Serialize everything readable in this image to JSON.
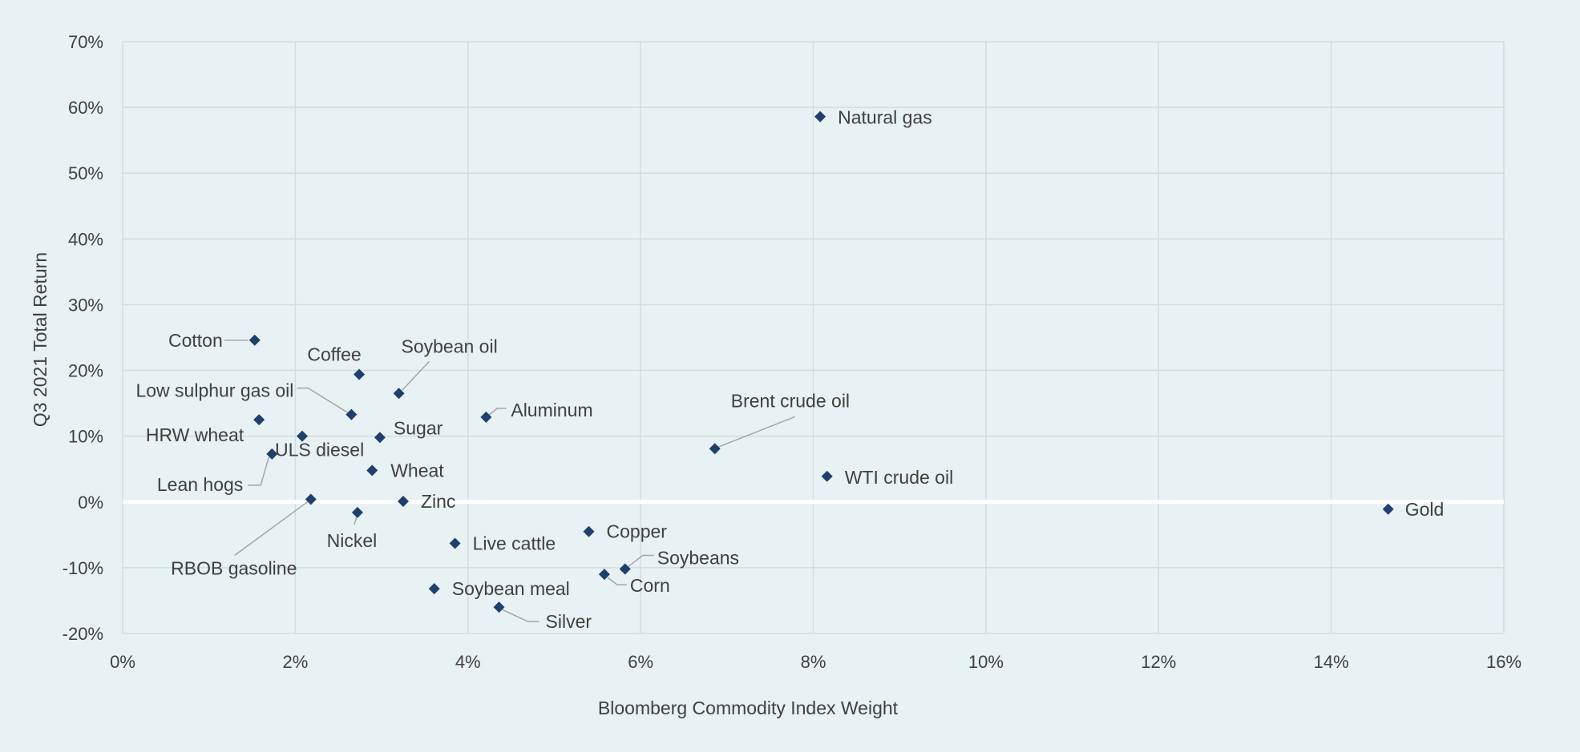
{
  "chart_data": {
    "type": "scatter",
    "xlabel": "Bloomberg Commodity Index Weight",
    "ylabel": "Q3 2021 Total Return",
    "xlim": [
      0,
      16
    ],
    "ylim": [
      -20,
      70
    ],
    "x_ticks": [
      {
        "value": 0,
        "label": "0%"
      },
      {
        "value": 2,
        "label": "2%"
      },
      {
        "value": 4,
        "label": "4%"
      },
      {
        "value": 6,
        "label": "6%"
      },
      {
        "value": 8,
        "label": "8%"
      },
      {
        "value": 10,
        "label": "10%"
      },
      {
        "value": 12,
        "label": "12%"
      },
      {
        "value": 14,
        "label": "14%"
      },
      {
        "value": 16,
        "label": "16%"
      }
    ],
    "y_ticks": [
      {
        "value": -20,
        "label": "-20%"
      },
      {
        "value": -10,
        "label": "-10%"
      },
      {
        "value": 0,
        "label": "0%"
      },
      {
        "value": 10,
        "label": "10%"
      },
      {
        "value": 20,
        "label": "20%"
      },
      {
        "value": 30,
        "label": "30%"
      },
      {
        "value": 40,
        "label": "40%"
      },
      {
        "value": 50,
        "label": "50%"
      },
      {
        "value": 60,
        "label": "60%"
      },
      {
        "value": 70,
        "label": "70%"
      }
    ],
    "grid": true,
    "marker_color": "#1f3f6e",
    "zero_line_color": "#ffffff",
    "points": [
      {
        "label": "Natural gas",
        "x": 8.08,
        "y": 58.6
      },
      {
        "label": "Cotton",
        "x": 1.53,
        "y": 24.6
      },
      {
        "label": "Coffee",
        "x": 2.74,
        "y": 19.4
      },
      {
        "label": "Soybean oil",
        "x": 3.2,
        "y": 16.5
      },
      {
        "label": "Low sulphur gas oil",
        "x": 2.65,
        "y": 13.3
      },
      {
        "label": "Aluminum",
        "x": 4.21,
        "y": 12.9
      },
      {
        "label": "HRW wheat",
        "x": 1.58,
        "y": 12.5
      },
      {
        "label": "Sugar",
        "x": 2.98,
        "y": 9.8
      },
      {
        "label": "ULS diesel",
        "x": 2.08,
        "y": 10.0
      },
      {
        "label": "Brent crude oil",
        "x": 6.86,
        "y": 8.1
      },
      {
        "label": "Lean hogs",
        "x": 1.73,
        "y": 7.3
      },
      {
        "label": "Wheat",
        "x": 2.89,
        "y": 4.8
      },
      {
        "label": "WTI crude oil",
        "x": 8.16,
        "y": 3.9
      },
      {
        "label": "RBOB gasoline",
        "x": 2.18,
        "y": 0.4
      },
      {
        "label": "Zinc",
        "x": 3.25,
        "y": 0.1
      },
      {
        "label": "Nickel",
        "x": 2.72,
        "y": -1.6
      },
      {
        "label": "Gold",
        "x": 14.66,
        "y": -1.1
      },
      {
        "label": "Copper",
        "x": 5.4,
        "y": -4.5
      },
      {
        "label": "Live cattle",
        "x": 3.85,
        "y": -6.3
      },
      {
        "label": "Soybeans",
        "x": 5.82,
        "y": -10.2
      },
      {
        "label": "Corn",
        "x": 5.58,
        "y": -11.0
      },
      {
        "label": "Soybean meal",
        "x": 3.61,
        "y": -13.2
      },
      {
        "label": "Silver",
        "x": 4.36,
        "y": -16.0
      }
    ]
  }
}
